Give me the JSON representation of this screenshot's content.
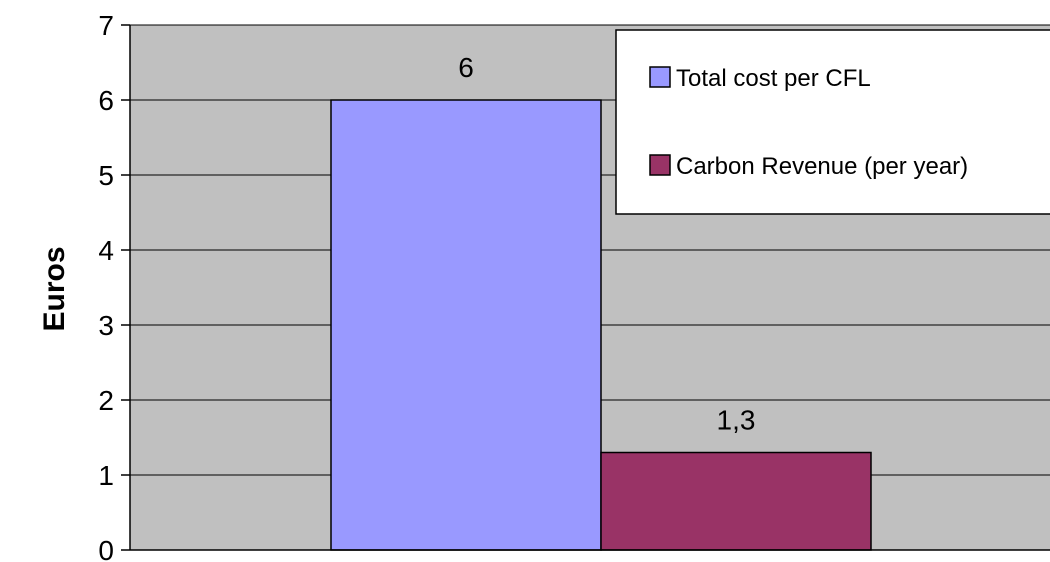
{
  "chart_data": {
    "type": "bar",
    "title": "",
    "xlabel": "",
    "ylabel": "Euros",
    "ylim": [
      0,
      7
    ],
    "yticks": [
      0,
      1,
      2,
      3,
      4,
      5,
      6,
      7
    ],
    "grid": true,
    "legend_position": "top-right",
    "series": [
      {
        "name": "Total cost per CFL",
        "value": 6,
        "value_label": "6",
        "color": "#9999ff"
      },
      {
        "name": "Carbon Revenue (per year)",
        "value": 1.3,
        "value_label": "1,3",
        "color": "#993366"
      }
    ],
    "plot_background": "#c0c0c0"
  }
}
